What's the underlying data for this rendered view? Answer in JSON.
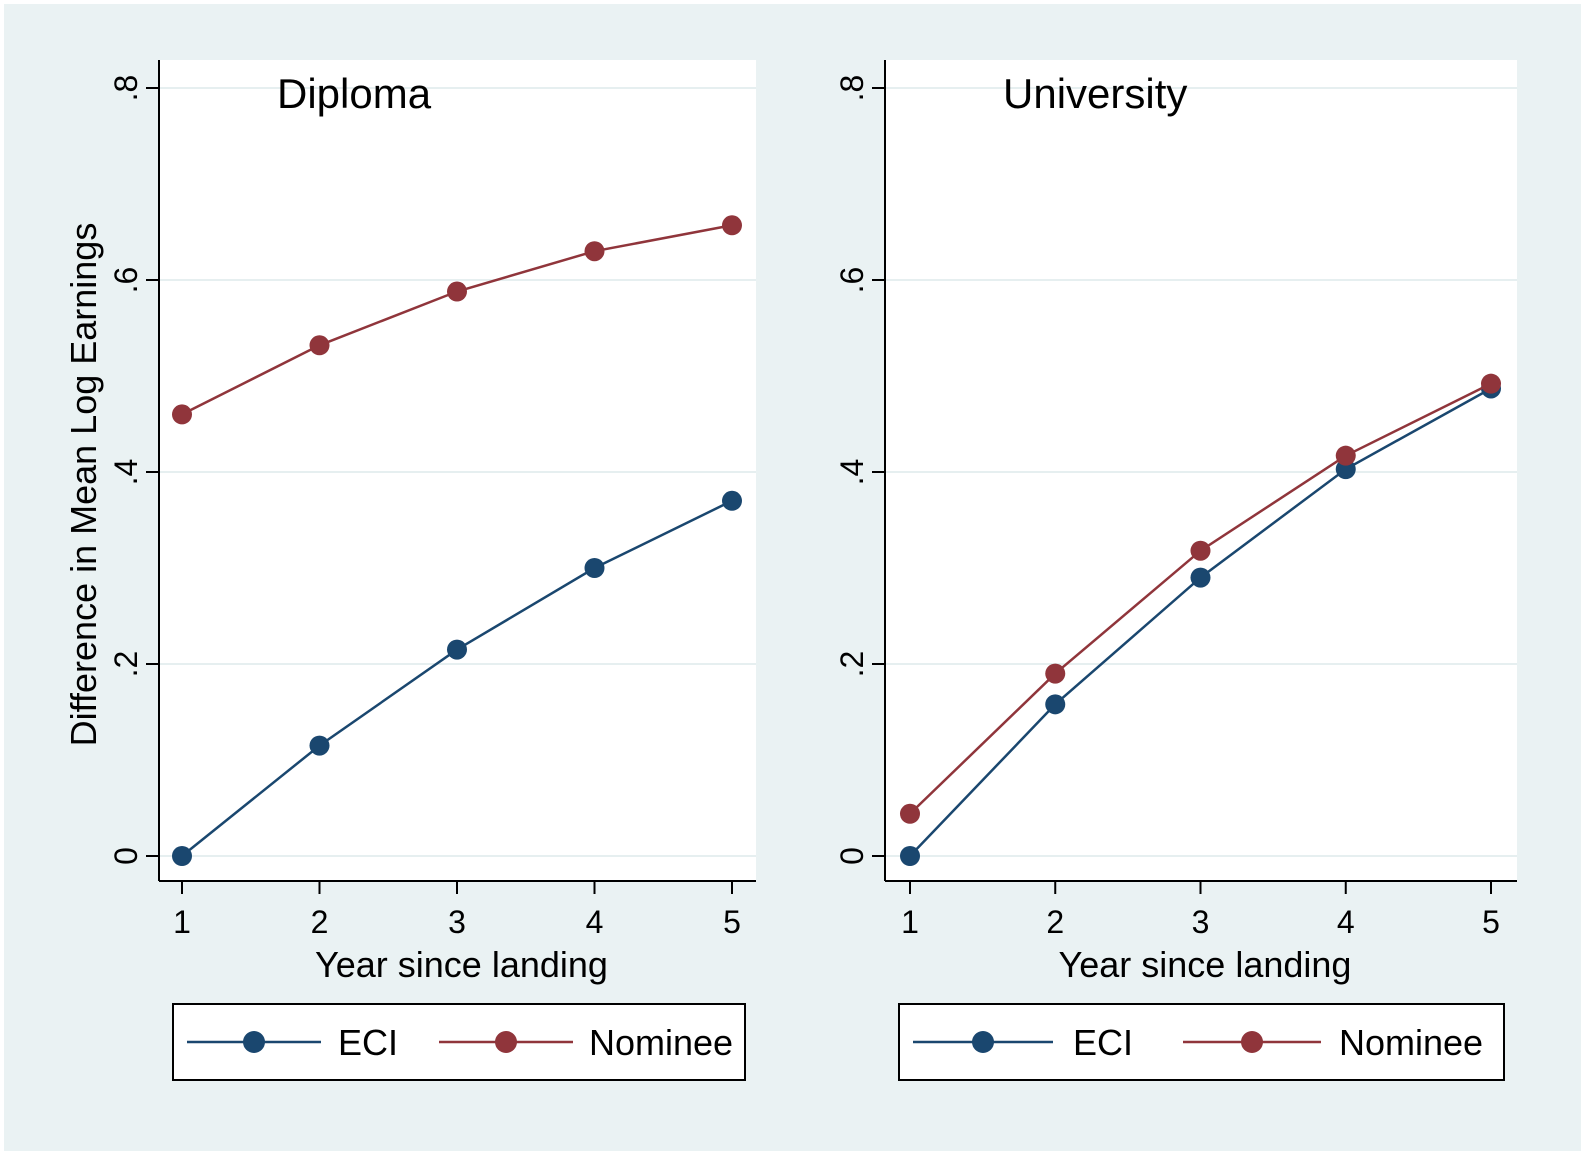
{
  "chart_data": [
    {
      "type": "line",
      "title": "Diploma",
      "xlabel": "Year since landing",
      "ylabel": "Difference in Mean Log Earnings",
      "x": [
        1,
        2,
        3,
        4,
        5
      ],
      "xticks": [
        "1",
        "2",
        "3",
        "4",
        "5"
      ],
      "yticks": [
        "0",
        ".2",
        ".4",
        ".6",
        ".8"
      ],
      "ylim": [
        0,
        0.8
      ],
      "grid": true,
      "legend_position": "bottom",
      "series": [
        {
          "name": "ECI",
          "color": "#1a476f",
          "values": [
            0.0,
            0.115,
            0.215,
            0.3,
            0.37
          ]
        },
        {
          "name": "Nominee",
          "color": "#90353b",
          "values": [
            0.46,
            0.532,
            0.588,
            0.63,
            0.657
          ]
        }
      ]
    },
    {
      "type": "line",
      "title": "University",
      "xlabel": "Year since landing",
      "ylabel": "",
      "x": [
        1,
        2,
        3,
        4,
        5
      ],
      "xticks": [
        "1",
        "2",
        "3",
        "4",
        "5"
      ],
      "yticks": [
        "0",
        ".2",
        ".4",
        ".6",
        ".8"
      ],
      "ylim": [
        0,
        0.8
      ],
      "grid": true,
      "legend_position": "bottom",
      "series": [
        {
          "name": "ECI",
          "color": "#1a476f",
          "values": [
            0.0,
            0.158,
            0.29,
            0.403,
            0.487
          ]
        },
        {
          "name": "Nominee",
          "color": "#90353b",
          "values": [
            0.044,
            0.19,
            0.318,
            0.417,
            0.492
          ]
        }
      ]
    }
  ]
}
